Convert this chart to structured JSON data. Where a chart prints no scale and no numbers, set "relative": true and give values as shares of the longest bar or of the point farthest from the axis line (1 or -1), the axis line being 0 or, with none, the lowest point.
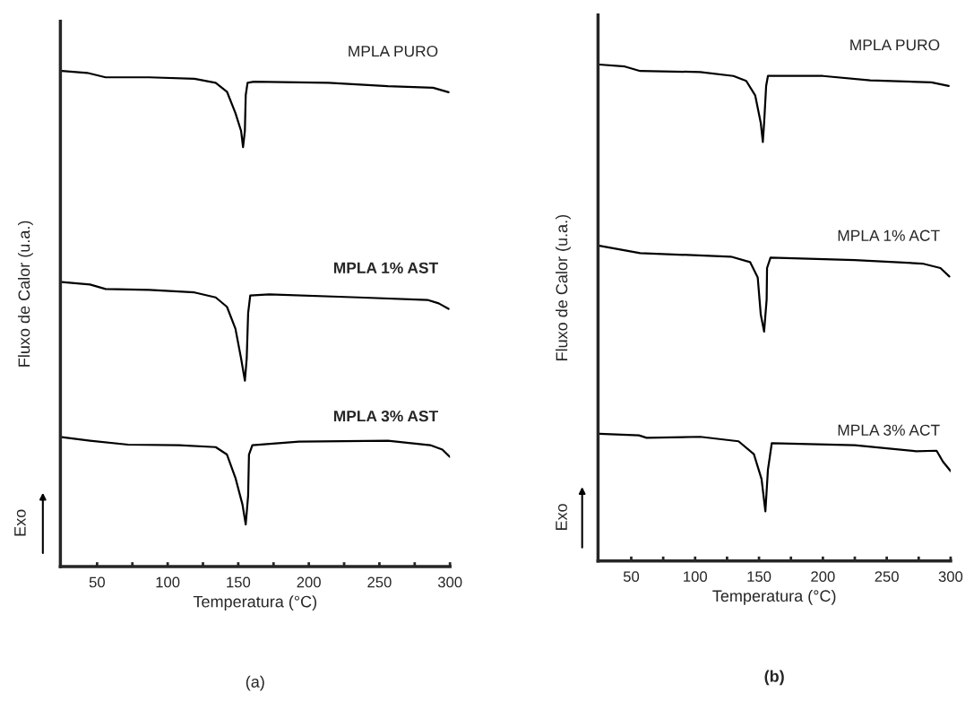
{
  "chart_data": [
    {
      "type": "line",
      "title": "(a)",
      "xlabel": "Temperatura (°C)",
      "ylabel": "Fluxo de Calor (u.a.)",
      "relative": true,
      "xlim": [
        24,
        300
      ],
      "xticks": [
        50,
        {
          "value": 75,
          "label": null
        },
        100,
        {
          "value": 125,
          "label": null
        },
        150,
        {
          "value": 175,
          "label": null
        },
        200,
        {
          "value": 225,
          "label": null
        },
        250,
        {
          "value": 275,
          "label": null
        },
        300
      ],
      "annotations": [
        "Exo"
      ],
      "grid": false,
      "legend": false,
      "line_style": "solid",
      "marker": "none",
      "series": [
        {
          "name": "MPLA PURO",
          "color": "#000000",
          "x": [
            25,
            43,
            56,
            87,
            119,
            134,
            142,
            148,
            152,
            153.4,
            154.7,
            155.3,
            156.6,
            161,
            214,
            256,
            288,
            299
          ],
          "values": [
            1.0,
            0.996,
            0.987,
            0.987,
            0.984,
            0.976,
            0.958,
            0.915,
            0.879,
            0.846,
            0.879,
            0.951,
            0.976,
            0.978,
            0.976,
            0.969,
            0.966,
            0.957
          ]
        },
        {
          "name": "MPLA 1% AST",
          "color": "#000000",
          "x": [
            25,
            45,
            56,
            87,
            119,
            134,
            142,
            148,
            152,
            154.7,
            156,
            157,
            158.5,
            172,
            235,
            284,
            292,
            299
          ],
          "values": [
            0.574,
            0.569,
            0.56,
            0.558,
            0.553,
            0.543,
            0.524,
            0.48,
            0.42,
            0.375,
            0.42,
            0.511,
            0.547,
            0.549,
            0.543,
            0.538,
            0.531,
            0.52
          ]
        },
        {
          "name": "MPLA 3% AST",
          "color": "#000000",
          "x": [
            25,
            45,
            72,
            108,
            134,
            142,
            148,
            153,
            155.3,
            157,
            157.6,
            160,
            193,
            256,
            286,
            294.6,
            300
          ],
          "values": [
            0.261,
            0.254,
            0.246,
            0.245,
            0.241,
            0.226,
            0.179,
            0.125,
            0.085,
            0.143,
            0.226,
            0.245,
            0.252,
            0.254,
            0.245,
            0.236,
            0.221
          ]
        }
      ]
    },
    {
      "type": "line",
      "title": "(b)",
      "xlabel": "Temperatura (°C)",
      "ylabel": "Fluxo de Calor (u.a.)",
      "relative": true,
      "xlim": [
        24,
        300
      ],
      "xticks": [
        50,
        {
          "value": 75,
          "label": null
        },
        100,
        {
          "value": 125,
          "label": null
        },
        150,
        {
          "value": 175,
          "label": null
        },
        200,
        {
          "value": 225,
          "label": null
        },
        250,
        {
          "value": 275,
          "label": null
        },
        300
      ],
      "annotations": [
        "Exo"
      ],
      "grid": false,
      "legend": false,
      "line_style": "solid",
      "marker": "none",
      "series": [
        {
          "name": "MPLA PURO",
          "color": "#000000",
          "x": [
            25,
            45,
            57,
            104,
            130,
            140,
            147,
            151.4,
            153,
            154,
            155.6,
            157,
            200,
            237,
            285,
            298.5
          ],
          "values": [
            1.0,
            0.996,
            0.987,
            0.985,
            0.977,
            0.967,
            0.938,
            0.882,
            0.844,
            0.882,
            0.957,
            0.977,
            0.977,
            0.968,
            0.964,
            0.957
          ]
        },
        {
          "name": "MPLA 1% ACT",
          "color": "#000000",
          "x": [
            25,
            57,
            128,
            143,
            149,
            151.4,
            154,
            156,
            156.3,
            159,
            225,
            278,
            292,
            299
          ],
          "values": [
            0.635,
            0.62,
            0.613,
            0.602,
            0.571,
            0.496,
            0.462,
            0.527,
            0.59,
            0.611,
            0.606,
            0.599,
            0.59,
            0.573
          ]
        },
        {
          "name": "MPLA 3% ACT",
          "color": "#000000",
          "x": [
            25,
            56,
            62,
            104,
            134,
            146,
            152,
            155,
            157,
            160,
            225,
            273,
            289,
            294,
            300
          ],
          "values": [
            0.256,
            0.253,
            0.248,
            0.25,
            0.241,
            0.215,
            0.165,
            0.1,
            0.184,
            0.237,
            0.233,
            0.221,
            0.222,
            0.2,
            0.181
          ]
        }
      ]
    }
  ]
}
